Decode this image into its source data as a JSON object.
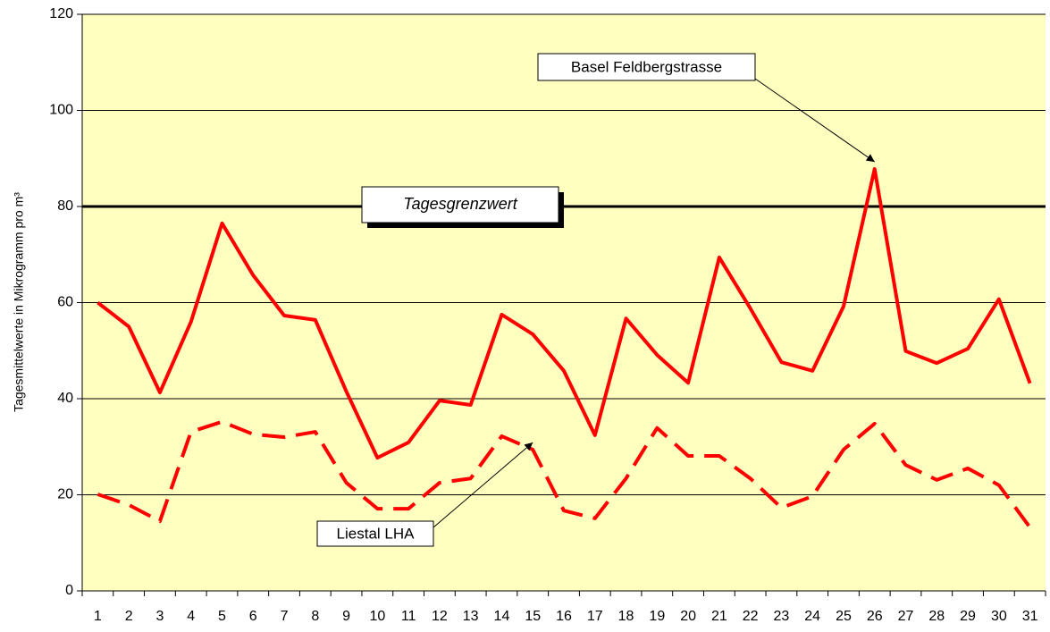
{
  "chart_data": {
    "type": "line",
    "y_label": "Tagesmittelwerte in Mikrogramm pro m³",
    "categories": [
      "1",
      "2",
      "3",
      "4",
      "5",
      "6",
      "7",
      "8",
      "9",
      "10",
      "11",
      "12",
      "13",
      "14",
      "15",
      "16",
      "17",
      "18",
      "19",
      "20",
      "21",
      "22",
      "23",
      "24",
      "25",
      "26",
      "27",
      "28",
      "29",
      "30",
      "31"
    ],
    "series": [
      {
        "name": "Basel Feldbergstrasse",
        "color": "#ff0000",
        "style": "solid",
        "values": [
          60,
          55,
          41.3,
          56,
          76.5,
          65.7,
          57.3,
          56.4,
          41.5,
          27.7,
          30.9,
          39.6,
          38.7,
          57.5,
          53.4,
          45.8,
          32.4,
          56.7,
          49.1,
          43.3,
          69.4,
          58.8,
          47.6,
          45.8,
          59.2,
          87.8,
          49.9,
          47.4,
          50.4,
          60.7,
          43.2
        ]
      },
      {
        "name": "Liestal LHA",
        "color": "#ff0000",
        "style": "dashed",
        "values": [
          20.1,
          17.9,
          14.5,
          33.1,
          35.2,
          32.6,
          32,
          33.1,
          22.5,
          17.1,
          17.1,
          22.5,
          23.4,
          32.2,
          29.4,
          16.7,
          15.1,
          23.4,
          33.9,
          28.1,
          28.1,
          23.4,
          17.3,
          19.7,
          29.4,
          34.8,
          26.2,
          23.1,
          25.5,
          22,
          13.2
        ]
      }
    ],
    "threshold": {
      "value": 80,
      "label": "Tagesgrenzwert"
    },
    "ylim": [
      0,
      120
    ],
    "yticks": [
      0,
      20,
      40,
      60,
      80,
      100,
      120
    ],
    "grid": true,
    "background": "#ffffc0"
  }
}
